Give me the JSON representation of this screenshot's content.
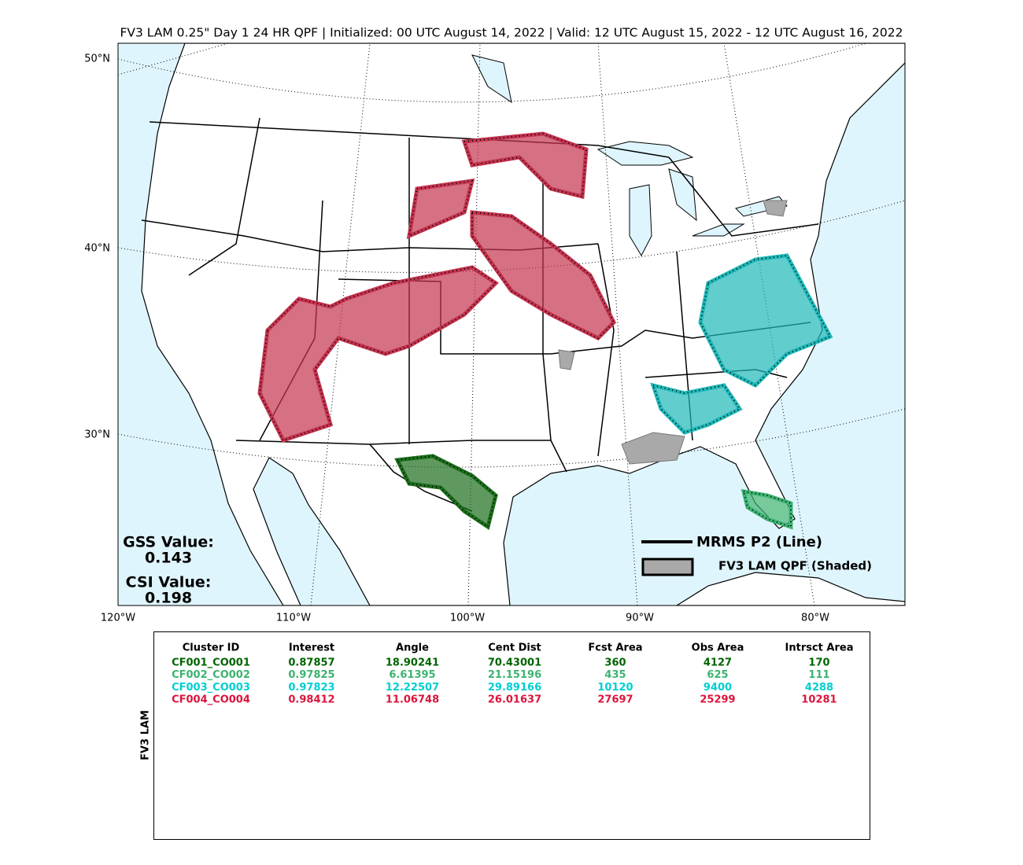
{
  "header": {
    "title": "FV3 LAM 0.25\" Day 1 24 HR QPF | Initialized: 00 UTC August 14, 2022 | Valid: 12 UTC August 15, 2022 - 12 UTC August 16, 2022"
  },
  "map": {
    "lat_labels": [
      "50°N",
      "40°N",
      "30°N"
    ],
    "lon_labels": [
      "120°W",
      "110°W",
      "100°W",
      "90°W",
      "80°W"
    ],
    "annotations": [
      {
        "label": "GSS Value:",
        "value": "0.143"
      },
      {
        "label": "CSI Value:",
        "value": "0.198"
      }
    ],
    "legend": {
      "line": "MRMS P2 (Line)",
      "shaded": "FV3 LAM QPF (Shaded)"
    }
  },
  "table": {
    "side_label": "FV3 LAM",
    "headers": [
      "Cluster ID",
      "Interest",
      "Angle",
      "Cent Dist",
      "Fcst Area",
      "Obs Area",
      "Intrsct Area"
    ],
    "rows": [
      {
        "color": "#006400",
        "cells": [
          "CF001_CO001",
          "0.87857",
          "18.90241",
          "70.43001",
          "360",
          "4127",
          "170"
        ]
      },
      {
        "color": "#3cb371",
        "cells": [
          "CF002_CO002",
          "0.97825",
          "6.61395",
          "21.15196",
          "435",
          "625",
          "111"
        ]
      },
      {
        "color": "#00ced1",
        "cells": [
          "CF003_CO003",
          "0.97823",
          "12.22507",
          "29.89166",
          "10120",
          "9400",
          "4288"
        ]
      },
      {
        "color": "#dc143c",
        "cells": [
          "CF004_CO004",
          "0.98412",
          "11.06748",
          "26.01637",
          "27697",
          "25299",
          "10281"
        ]
      }
    ]
  }
}
